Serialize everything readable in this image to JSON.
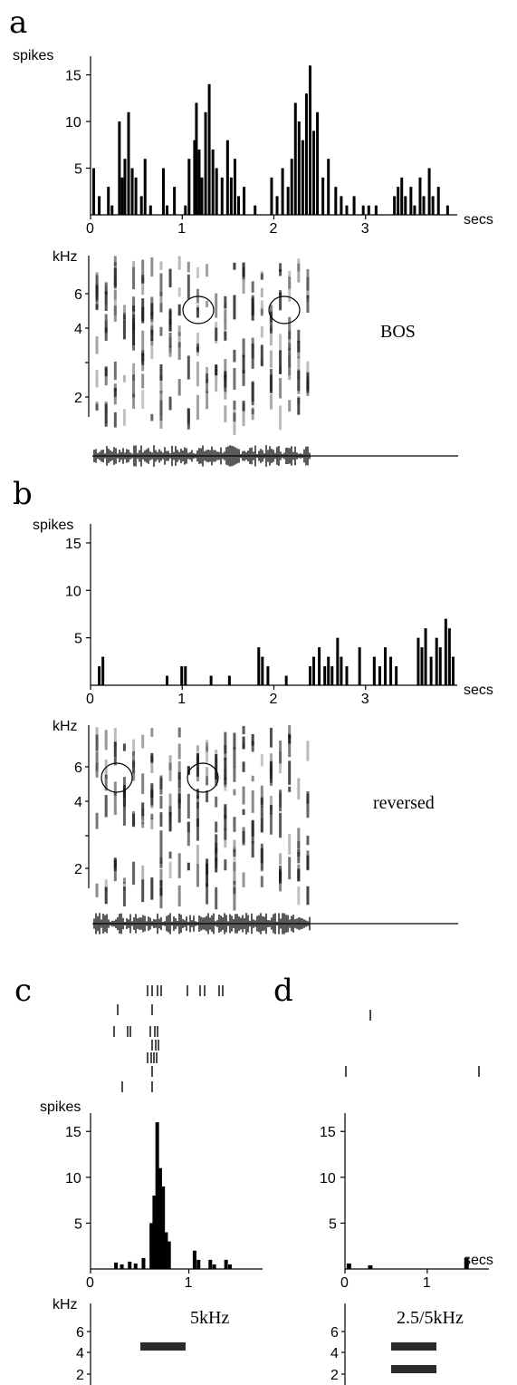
{
  "panels": {
    "a": "a",
    "b": "b",
    "c": "c",
    "d": "d"
  },
  "units": {
    "spikes": "spikes",
    "secs": "secs",
    "khz": "kHz"
  },
  "stimulus_labels": {
    "a": "BOS",
    "b": "reversed",
    "c": "5kHz",
    "d": "2.5/5kHz"
  },
  "colors": {
    "ink": "#000000",
    "spectrogram": "#1a1a1a",
    "tone": "#2b2b2b"
  },
  "chart_data": [
    {
      "id": "a-psth",
      "type": "bar",
      "ylabel": "spikes",
      "xlabel": "secs",
      "xlim": [
        0,
        4
      ],
      "ylim": [
        0,
        17
      ],
      "xticks": [
        "0",
        "1",
        "2",
        "3"
      ],
      "yticks": [
        "5",
        "10",
        "15"
      ],
      "x": [
        0.02,
        0.08,
        0.18,
        0.22,
        0.3,
        0.33,
        0.36,
        0.4,
        0.44,
        0.48,
        0.54,
        0.58,
        0.64,
        0.78,
        0.82,
        0.9,
        1.02,
        1.06,
        1.12,
        1.14,
        1.17,
        1.2,
        1.24,
        1.28,
        1.32,
        1.36,
        1.42,
        1.48,
        1.52,
        1.56,
        1.6,
        1.66,
        1.78,
        1.96,
        2.02,
        2.08,
        2.14,
        2.18,
        2.22,
        2.26,
        2.3,
        2.34,
        2.38,
        2.42,
        2.46,
        2.52,
        2.58,
        2.66,
        2.72,
        2.78,
        2.86,
        2.96,
        3.02,
        3.1,
        3.3,
        3.34,
        3.38,
        3.42,
        3.48,
        3.52,
        3.58,
        3.62,
        3.68,
        3.72,
        3.78,
        3.88
      ],
      "values": [
        5,
        2,
        3,
        1,
        10,
        4,
        6,
        11,
        5,
        4,
        2,
        6,
        1,
        5,
        1,
        3,
        1,
        6,
        8,
        12,
        7,
        4,
        11,
        14,
        7,
        5,
        4,
        8,
        4,
        6,
        2,
        3,
        1,
        4,
        2,
        5,
        3,
        6,
        12,
        10,
        8,
        13,
        16,
        9,
        11,
        4,
        6,
        3,
        2,
        1,
        2,
        1,
        1,
        1,
        2,
        3,
        4,
        2,
        3,
        1,
        4,
        2,
        5,
        2,
        3,
        1
      ]
    },
    {
      "id": "b-psth",
      "type": "bar",
      "ylabel": "spikes",
      "xlabel": "secs",
      "xlim": [
        0,
        4
      ],
      "ylim": [
        0,
        17
      ],
      "xticks": [
        "0",
        "1",
        "2",
        "3"
      ],
      "yticks": [
        "5",
        "10",
        "15"
      ],
      "x": [
        0.08,
        0.12,
        0.82,
        0.98,
        1.02,
        1.3,
        1.5,
        1.82,
        1.86,
        1.92,
        2.12,
        2.38,
        2.42,
        2.48,
        2.54,
        2.58,
        2.62,
        2.68,
        2.72,
        2.78,
        2.92,
        3.08,
        3.14,
        3.2,
        3.26,
        3.32,
        3.56,
        3.6,
        3.64,
        3.7,
        3.76,
        3.8,
        3.86,
        3.9,
        3.94
      ],
      "values": [
        2,
        3,
        1,
        2,
        2,
        1,
        1,
        4,
        3,
        2,
        1,
        2,
        3,
        4,
        2,
        3,
        2,
        5,
        3,
        2,
        4,
        3,
        2,
        4,
        3,
        2,
        5,
        4,
        6,
        3,
        5,
        4,
        7,
        6,
        3
      ]
    },
    {
      "id": "c-psth",
      "type": "bar",
      "ylabel": "spikes",
      "xlabel": "",
      "xlim": [
        0,
        1.75
      ],
      "ylim": [
        0,
        17
      ],
      "xticks": [
        "0",
        "1"
      ],
      "yticks": [
        "5",
        "10",
        "15"
      ],
      "x": [
        0.24,
        0.3,
        0.38,
        0.44,
        0.52,
        0.6,
        0.63,
        0.66,
        0.69,
        0.72,
        0.75,
        0.78,
        1.04,
        1.08,
        1.2,
        1.24,
        1.36,
        1.4
      ],
      "values": [
        0.7,
        0.5,
        0.8,
        0.6,
        1.2,
        5,
        8,
        16,
        11,
        9,
        4,
        3,
        2,
        1,
        1,
        0.5,
        1,
        0.5
      ]
    },
    {
      "id": "d-psth",
      "type": "bar",
      "ylabel": "",
      "xlabel": "secs",
      "xlim": [
        0,
        1.75
      ],
      "ylim": [
        0,
        17
      ],
      "xticks": [
        "0",
        "1"
      ],
      "yticks": [
        "5",
        "10",
        "15"
      ],
      "x": [
        0.02,
        0.28,
        1.45
      ],
      "values": [
        0.6,
        0.4,
        1.2
      ]
    }
  ]
}
